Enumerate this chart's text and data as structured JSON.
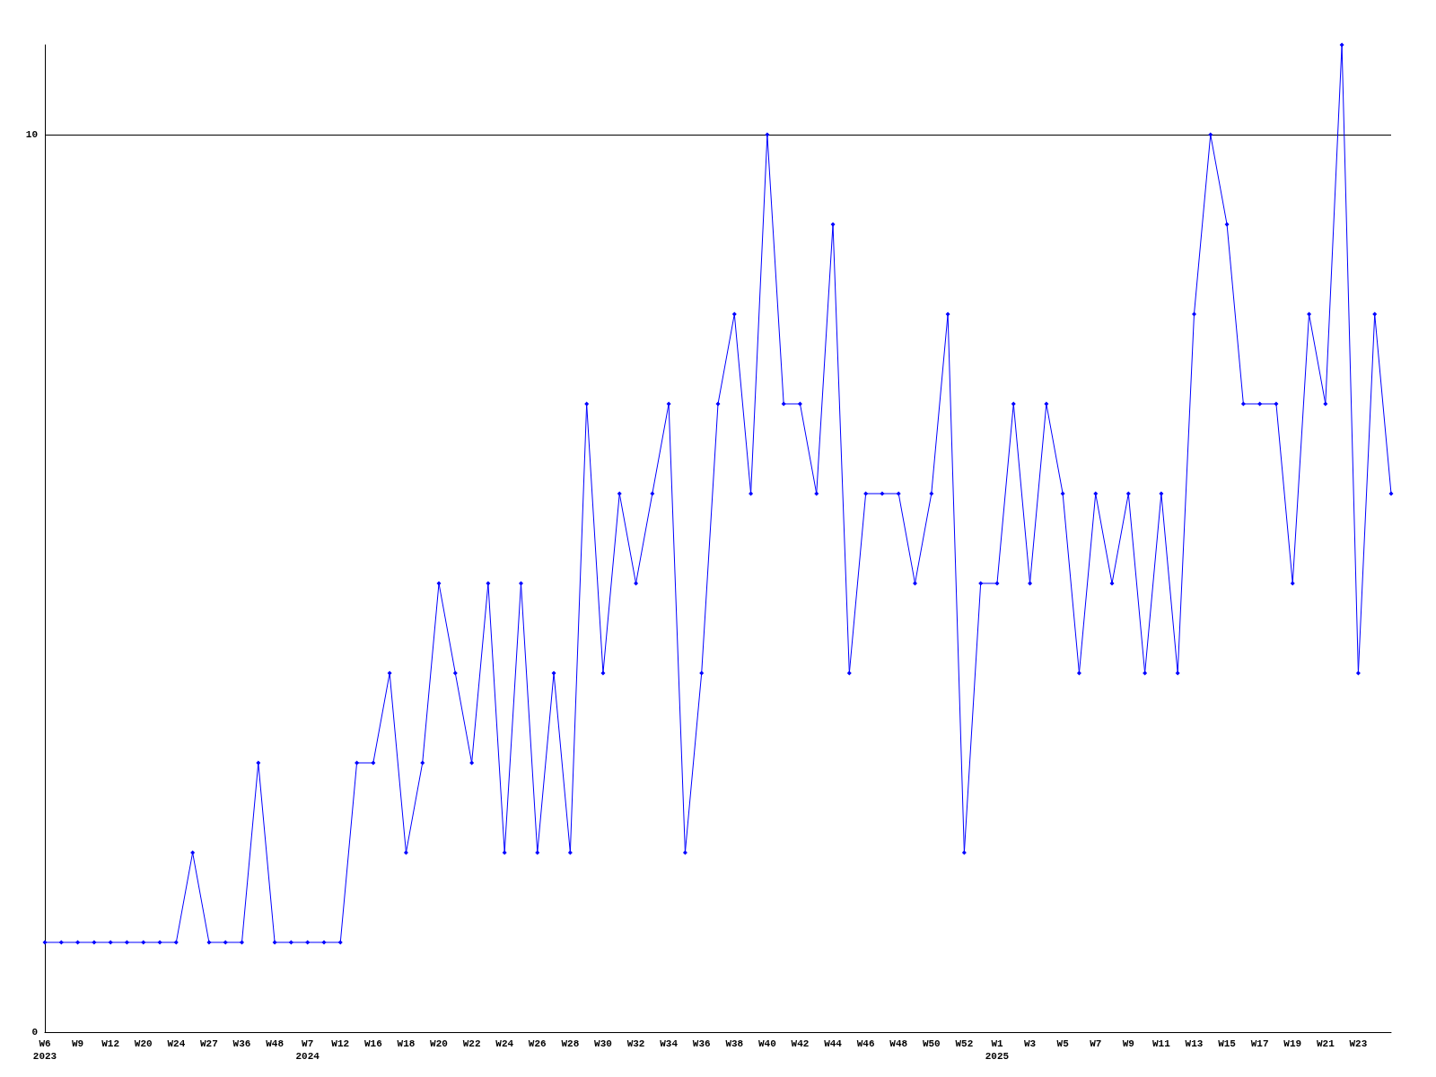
{
  "chart_data": {
    "type": "line",
    "categories": [
      "W6\n2023",
      null,
      "W9",
      null,
      "W12",
      null,
      "W20",
      null,
      "W24",
      null,
      "W27",
      null,
      "W36",
      null,
      "W48",
      null,
      "W7\n2024",
      null,
      "W12",
      null,
      "W16",
      null,
      "W18",
      null,
      "W20",
      null,
      "W22",
      null,
      "W24",
      null,
      "W26",
      null,
      "W28",
      null,
      "W30",
      null,
      "W32",
      null,
      "W34",
      null,
      "W36",
      null,
      "W38",
      null,
      "W40",
      null,
      "W42",
      null,
      "W44",
      null,
      "W46",
      null,
      "W48",
      null,
      "W50",
      null,
      "W52",
      null,
      "W1\n2025",
      null,
      "W3",
      null,
      "W5",
      null,
      "W7",
      null,
      "W9",
      null,
      "W11",
      null,
      "W13",
      null,
      "W15",
      null,
      "W17",
      null,
      "W19",
      null,
      "W21",
      null,
      "W23",
      null,
      null
    ],
    "series": [
      {
        "color": "#0000ff",
        "values": [
          1,
          1,
          1,
          1,
          1,
          1,
          1,
          1,
          1,
          2,
          1,
          1,
          1,
          3,
          1,
          1,
          1,
          1,
          1,
          3,
          3,
          4,
          2,
          3,
          5,
          4,
          3,
          5,
          2,
          5,
          2,
          4,
          2,
          7,
          4,
          6,
          5,
          6,
          7,
          2,
          4,
          7,
          8,
          6,
          10,
          7,
          7,
          6,
          9,
          4,
          6,
          6,
          6,
          5,
          6,
          8,
          2,
          5,
          5,
          7,
          5,
          7,
          6,
          4,
          6,
          5,
          6,
          4,
          6,
          4,
          8,
          10,
          9,
          7,
          7,
          7,
          5,
          8,
          7,
          11,
          4,
          8,
          6
        ]
      }
    ],
    "ylim": [
      0,
      11
    ],
    "yticks": [
      0,
      10
    ],
    "grid": "y",
    "marker": "diamond",
    "line_style": "solid"
  }
}
